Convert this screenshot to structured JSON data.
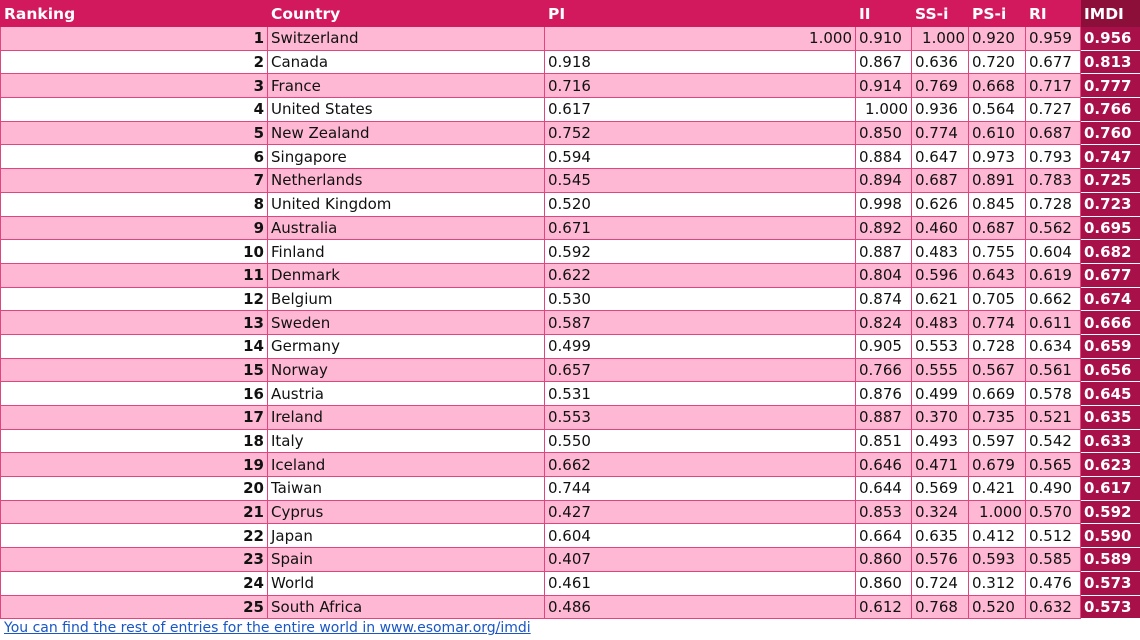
{
  "headers": {
    "ranking": "Ranking",
    "country": "Country",
    "pi": "PI",
    "ii": "II",
    "ssi": "SS-i",
    "psi": "PS-i",
    "ri": "RI",
    "imdi": "IMDI"
  },
  "rows": [
    {
      "rank": "1",
      "country": "Switzerland",
      "pi": "1.000",
      "ii": "0.910",
      "ssi": "1.000",
      "psi": "0.920",
      "ri": "0.959",
      "imdi": "0.956"
    },
    {
      "rank": "2",
      "country": "Canada",
      "pi": "0.918",
      "ii": "0.867",
      "ssi": "0.636",
      "psi": "0.720",
      "ri": "0.677",
      "imdi": "0.813"
    },
    {
      "rank": "3",
      "country": "France",
      "pi": "0.716",
      "ii": "0.914",
      "ssi": "0.769",
      "psi": "0.668",
      "ri": "0.717",
      "imdi": "0.777"
    },
    {
      "rank": "4",
      "country": "United States",
      "pi": "0.617",
      "ii": "1.000",
      "ssi": "0.936",
      "psi": "0.564",
      "ri": "0.727",
      "imdi": "0.766"
    },
    {
      "rank": "5",
      "country": "New Zealand",
      "pi": "0.752",
      "ii": "0.850",
      "ssi": "0.774",
      "psi": "0.610",
      "ri": "0.687",
      "imdi": "0.760"
    },
    {
      "rank": "6",
      "country": "Singapore",
      "pi": "0.594",
      "ii": "0.884",
      "ssi": "0.647",
      "psi": "0.973",
      "ri": "0.793",
      "imdi": "0.747"
    },
    {
      "rank": "7",
      "country": "Netherlands",
      "pi": "0.545",
      "ii": "0.894",
      "ssi": "0.687",
      "psi": "0.891",
      "ri": "0.783",
      "imdi": "0.725"
    },
    {
      "rank": "8",
      "country": "United Kingdom",
      "pi": "0.520",
      "ii": "0.998",
      "ssi": "0.626",
      "psi": "0.845",
      "ri": "0.728",
      "imdi": "0.723"
    },
    {
      "rank": "9",
      "country": "Australia",
      "pi": "0.671",
      "ii": "0.892",
      "ssi": "0.460",
      "psi": "0.687",
      "ri": "0.562",
      "imdi": "0.695"
    },
    {
      "rank": "10",
      "country": "Finland",
      "pi": "0.592",
      "ii": "0.887",
      "ssi": "0.483",
      "psi": "0.755",
      "ri": "0.604",
      "imdi": "0.682"
    },
    {
      "rank": "11",
      "country": "Denmark",
      "pi": "0.622",
      "ii": "0.804",
      "ssi": "0.596",
      "psi": "0.643",
      "ri": "0.619",
      "imdi": "0.677"
    },
    {
      "rank": "12",
      "country": "Belgium",
      "pi": "0.530",
      "ii": "0.874",
      "ssi": "0.621",
      "psi": "0.705",
      "ri": "0.662",
      "imdi": "0.674"
    },
    {
      "rank": "13",
      "country": "Sweden",
      "pi": "0.587",
      "ii": "0.824",
      "ssi": "0.483",
      "psi": "0.774",
      "ri": "0.611",
      "imdi": "0.666"
    },
    {
      "rank": "14",
      "country": "Germany",
      "pi": "0.499",
      "ii": "0.905",
      "ssi": "0.553",
      "psi": "0.728",
      "ri": "0.634",
      "imdi": "0.659"
    },
    {
      "rank": "15",
      "country": "Norway",
      "pi": "0.657",
      "ii": "0.766",
      "ssi": "0.555",
      "psi": "0.567",
      "ri": "0.561",
      "imdi": "0.656"
    },
    {
      "rank": "16",
      "country": "Austria",
      "pi": "0.531",
      "ii": "0.876",
      "ssi": "0.499",
      "psi": "0.669",
      "ri": "0.578",
      "imdi": "0.645"
    },
    {
      "rank": "17",
      "country": "Ireland",
      "pi": "0.553",
      "ii": "0.887",
      "ssi": "0.370",
      "psi": "0.735",
      "ri": "0.521",
      "imdi": "0.635"
    },
    {
      "rank": "18",
      "country": "Italy",
      "pi": "0.550",
      "ii": "0.851",
      "ssi": "0.493",
      "psi": "0.597",
      "ri": "0.542",
      "imdi": "0.633"
    },
    {
      "rank": "19",
      "country": "Iceland",
      "pi": "0.662",
      "ii": "0.646",
      "ssi": "0.471",
      "psi": "0.679",
      "ri": "0.565",
      "imdi": "0.623"
    },
    {
      "rank": "20",
      "country": "Taiwan",
      "pi": "0.744",
      "ii": "0.644",
      "ssi": "0.569",
      "psi": "0.421",
      "ri": "0.490",
      "imdi": "0.617"
    },
    {
      "rank": "21",
      "country": "Cyprus",
      "pi": "0.427",
      "ii": "0.853",
      "ssi": "0.324",
      "psi": "1.000",
      "ri": "0.570",
      "imdi": "0.592"
    },
    {
      "rank": "22",
      "country": "Japan",
      "pi": "0.604",
      "ii": "0.664",
      "ssi": "0.635",
      "psi": "0.412",
      "ri": "0.512",
      "imdi": "0.590"
    },
    {
      "rank": "23",
      "country": "Spain",
      "pi": "0.407",
      "ii": "0.860",
      "ssi": "0.576",
      "psi": "0.593",
      "ri": "0.585",
      "imdi": "0.589"
    },
    {
      "rank": "24",
      "country": "World",
      "pi": "0.461",
      "ii": "0.860",
      "ssi": "0.724",
      "psi": "0.312",
      "ri": "0.476",
      "imdi": "0.573"
    },
    {
      "rank": "25",
      "country": "South Africa",
      "pi": "0.486",
      "ii": "0.612",
      "ssi": "0.768",
      "psi": "0.520",
      "ri": "0.632",
      "imdi": "0.573"
    }
  ],
  "footer": {
    "link_text": "You can find the rest of entries for the entire world in www.esomar.org/imdi"
  },
  "colors": {
    "header_bg": "#d2195e",
    "imdi_bg": "#a8104a",
    "row_pink": "#ffb8d3",
    "row_white": "#ffffff",
    "link": "#1a56c4"
  }
}
